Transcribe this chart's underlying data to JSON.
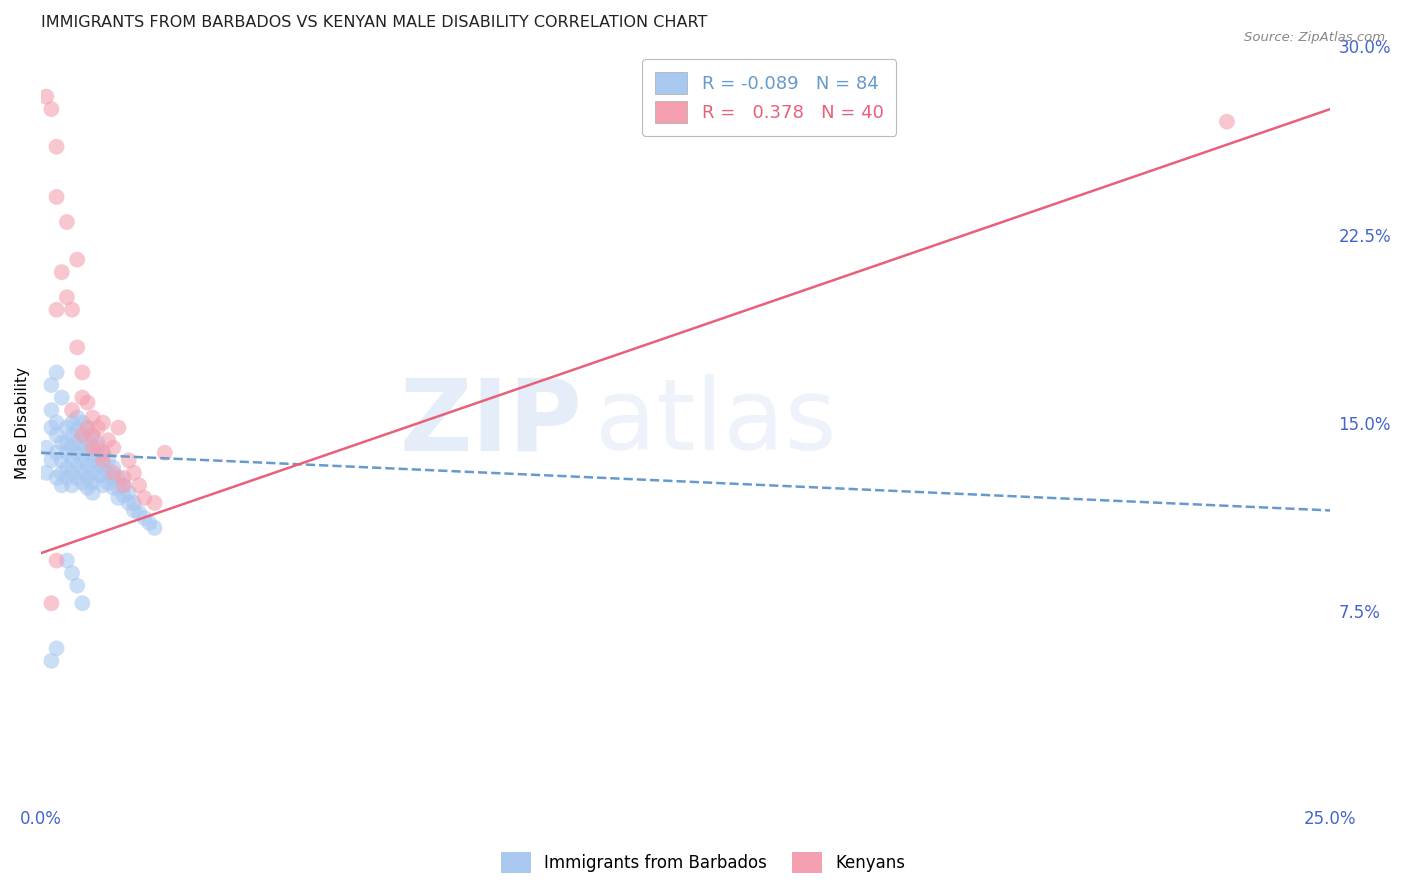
{
  "title": "IMMIGRANTS FROM BARBADOS VS KENYAN MALE DISABILITY CORRELATION CHART",
  "source": "Source: ZipAtlas.com",
  "ylabel": "Male Disability",
  "xlim": [
    0.0,
    0.25
  ],
  "ylim": [
    0.0,
    0.3
  ],
  "xticks": [
    0.0,
    0.05,
    0.1,
    0.15,
    0.2,
    0.25
  ],
  "xtick_labels": [
    "0.0%",
    "",
    "",
    "",
    "",
    "25.0%"
  ],
  "yticks": [
    0.075,
    0.15,
    0.225,
    0.3
  ],
  "ytick_labels": [
    "7.5%",
    "15.0%",
    "22.5%",
    "30.0%"
  ],
  "watermark_zip": "ZIP",
  "watermark_atlas": "atlas",
  "legend_blue_r": "-0.089",
  "legend_blue_n": "84",
  "legend_pink_r": "0.378",
  "legend_pink_n": "40",
  "blue_color": "#a8c8f0",
  "pink_color": "#f4a0b0",
  "blue_line_color": "#6699cc",
  "pink_line_color": "#e8607a",
  "tick_label_color": "#4466cc",
  "grid_color": "#cccccc",
  "background_color": "#ffffff",
  "blue_scatter_x": [
    0.001,
    0.001,
    0.002,
    0.002,
    0.002,
    0.003,
    0.003,
    0.003,
    0.003,
    0.004,
    0.004,
    0.004,
    0.004,
    0.005,
    0.005,
    0.005,
    0.005,
    0.005,
    0.006,
    0.006,
    0.006,
    0.006,
    0.006,
    0.006,
    0.007,
    0.007,
    0.007,
    0.007,
    0.007,
    0.007,
    0.008,
    0.008,
    0.008,
    0.008,
    0.008,
    0.008,
    0.009,
    0.009,
    0.009,
    0.009,
    0.009,
    0.009,
    0.01,
    0.01,
    0.01,
    0.01,
    0.01,
    0.01,
    0.011,
    0.011,
    0.011,
    0.011,
    0.012,
    0.012,
    0.012,
    0.012,
    0.013,
    0.013,
    0.013,
    0.014,
    0.014,
    0.014,
    0.015,
    0.015,
    0.015,
    0.016,
    0.016,
    0.017,
    0.017,
    0.018,
    0.018,
    0.019,
    0.02,
    0.021,
    0.022,
    0.002,
    0.003,
    0.004,
    0.005,
    0.006,
    0.007,
    0.008,
    0.003,
    0.002
  ],
  "blue_scatter_y": [
    0.14,
    0.13,
    0.155,
    0.148,
    0.135,
    0.15,
    0.145,
    0.138,
    0.128,
    0.142,
    0.135,
    0.13,
    0.125,
    0.148,
    0.142,
    0.138,
    0.132,
    0.128,
    0.15,
    0.145,
    0.14,
    0.135,
    0.13,
    0.125,
    0.152,
    0.147,
    0.142,
    0.138,
    0.133,
    0.128,
    0.15,
    0.145,
    0.14,
    0.135,
    0.13,
    0.126,
    0.148,
    0.143,
    0.138,
    0.133,
    0.128,
    0.124,
    0.145,
    0.14,
    0.135,
    0.13,
    0.126,
    0.122,
    0.142,
    0.137,
    0.133,
    0.129,
    0.138,
    0.133,
    0.129,
    0.125,
    0.135,
    0.13,
    0.126,
    0.132,
    0.128,
    0.124,
    0.128,
    0.124,
    0.12,
    0.125,
    0.121,
    0.122,
    0.118,
    0.118,
    0.115,
    0.114,
    0.112,
    0.11,
    0.108,
    0.165,
    0.17,
    0.16,
    0.095,
    0.09,
    0.085,
    0.078,
    0.06,
    0.055
  ],
  "pink_scatter_x": [
    0.001,
    0.002,
    0.003,
    0.003,
    0.004,
    0.005,
    0.005,
    0.006,
    0.007,
    0.007,
    0.008,
    0.008,
    0.009,
    0.009,
    0.01,
    0.01,
    0.011,
    0.011,
    0.012,
    0.012,
    0.013,
    0.014,
    0.015,
    0.016,
    0.017,
    0.018,
    0.019,
    0.02,
    0.022,
    0.024,
    0.003,
    0.006,
    0.008,
    0.01,
    0.012,
    0.014,
    0.016,
    0.003,
    0.002,
    0.23
  ],
  "pink_scatter_y": [
    0.28,
    0.275,
    0.26,
    0.24,
    0.21,
    0.23,
    0.2,
    0.195,
    0.215,
    0.18,
    0.17,
    0.16,
    0.158,
    0.148,
    0.152,
    0.145,
    0.148,
    0.14,
    0.15,
    0.138,
    0.143,
    0.14,
    0.148,
    0.128,
    0.135,
    0.13,
    0.125,
    0.12,
    0.118,
    0.138,
    0.195,
    0.155,
    0.145,
    0.14,
    0.135,
    0.13,
    0.125,
    0.095,
    0.078,
    0.27
  ],
  "blue_line_x": [
    0.0,
    0.25
  ],
  "blue_line_y": [
    0.138,
    0.115
  ],
  "pink_line_x": [
    0.0,
    0.25
  ],
  "pink_line_y": [
    0.098,
    0.275
  ]
}
